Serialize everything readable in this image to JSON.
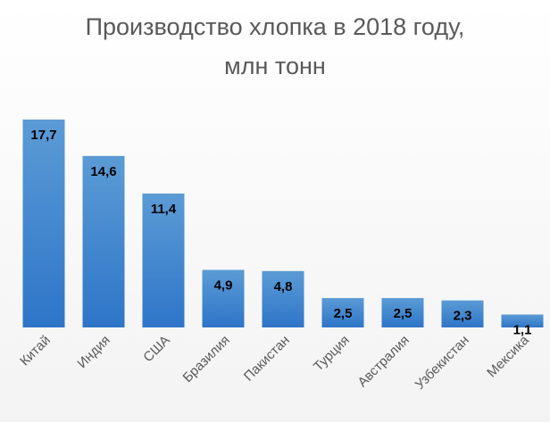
{
  "chart_data": {
    "type": "bar",
    "title_line1": "Производство хлопка в 2018 году,",
    "title_line2": "млн тонн",
    "categories": [
      "Китай",
      "Индия",
      "США",
      "Бразилия",
      "Пакистан",
      "Турция",
      "Австралия",
      "Узбекистан",
      "Мексика"
    ],
    "values": [
      17.7,
      14.6,
      11.4,
      4.9,
      4.8,
      2.5,
      2.5,
      2.3,
      1.1
    ],
    "value_labels": [
      "17,7",
      "14,6",
      "11,4",
      "4,9",
      "4,8",
      "2,5",
      "2,5",
      "2,3",
      "1,1"
    ],
    "ylim": [
      0,
      17.7
    ],
    "grid": false,
    "legend": "none",
    "colors": {
      "bar_top": "#5b9bd5",
      "bar_bottom": "#2e75c8",
      "label": "#000000",
      "axis_text": "#595959"
    }
  }
}
